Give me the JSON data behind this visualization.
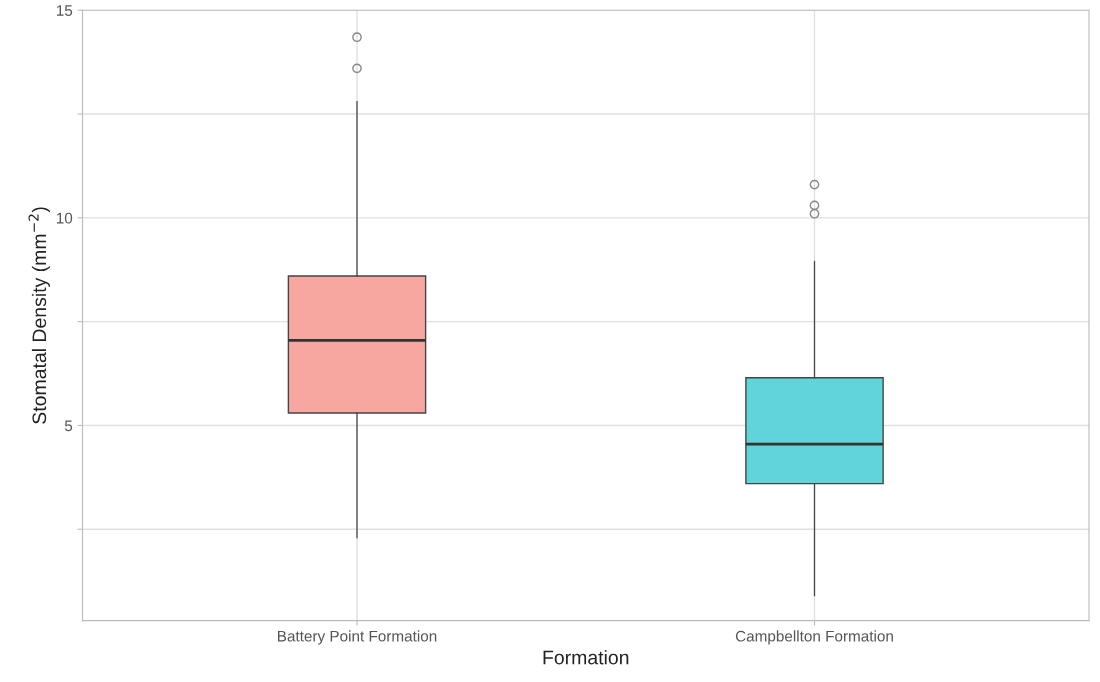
{
  "chart_data": {
    "type": "box",
    "xlabel": "Formation",
    "ylabel": "Stomatal Density (mm$^{−2}$)",
    "categories": [
      "Battery Point Formation",
      "Campbellton Formation"
    ],
    "colors": [
      "#f8a6a0",
      "#5fd5da"
    ],
    "boxes": [
      {
        "low": 2.3,
        "q1": 5.3,
        "median": 7.05,
        "q3": 8.6,
        "high": 12.8,
        "outliers": [
          13.6,
          14.35
        ]
      },
      {
        "low": 0.9,
        "q1": 3.6,
        "median": 4.55,
        "q3": 6.15,
        "high": 8.95,
        "outliers": [
          10.1,
          10.3,
          10.8
        ]
      }
    ],
    "ylim": [
      0.3,
      15.0
    ],
    "yticks": [
      {
        "value": 2.5,
        "label": null
      },
      5,
      {
        "value": 7.5,
        "label": null
      },
      10,
      {
        "value": 12.5,
        "label": null
      },
      15
    ],
    "grid": true
  }
}
